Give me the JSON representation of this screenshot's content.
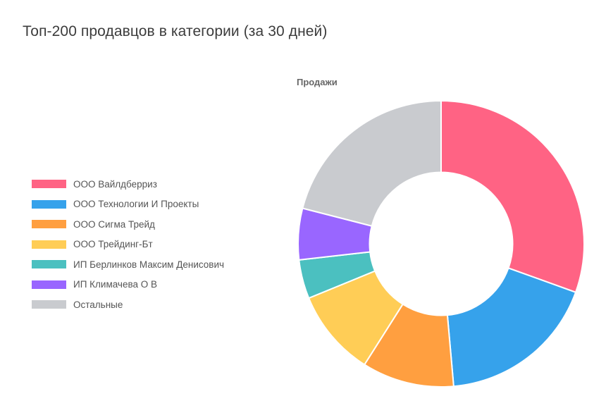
{
  "page": {
    "title": "Топ-200 продавцов в категории (за 30 дней)"
  },
  "chart": {
    "title": "Продажи"
  },
  "legend": {
    "items": [
      {
        "label": "ООО Вайлдберриз",
        "color": "#FF6384"
      },
      {
        "label": "ООО Технологии И Проекты",
        "color": "#36A2EB"
      },
      {
        "label": "ООО Сигма Трейд",
        "color": "#FF9F40"
      },
      {
        "label": "ООО Трейдинг-Бт",
        "color": "#FFCD56"
      },
      {
        "label": "ИП Берлинков Максим Денисович",
        "color": "#4BC0C0"
      },
      {
        "label": "ИП Климачева О В",
        "color": "#9966FF"
      },
      {
        "label": "Остальные",
        "color": "#C9CBCF"
      }
    ]
  },
  "chart_data": {
    "type": "pie",
    "variant": "doughnut",
    "title": "Продажи",
    "categories": [
      "ООО Вайлдберриз",
      "ООО Технологии И Проекты",
      "ООО Сигма Трейд",
      "ООО Трейдинг-Бт",
      "ИП Берлинков Максим Денисович",
      "ИП Климачева О В",
      "Остальные"
    ],
    "values": [
      30.5,
      18.1,
      10.4,
      9.8,
      4.4,
      5.8,
      21.0
    ],
    "unit": "% of sales (estimated from slice angles)",
    "colors": [
      "#FF6384",
      "#36A2EB",
      "#FF9F40",
      "#FFCD56",
      "#4BC0C0",
      "#9966FF",
      "#C9CBCF"
    ],
    "legend_position": "left",
    "cutout": 0.5,
    "start_angle_deg": 0,
    "direction": "clockwise"
  }
}
